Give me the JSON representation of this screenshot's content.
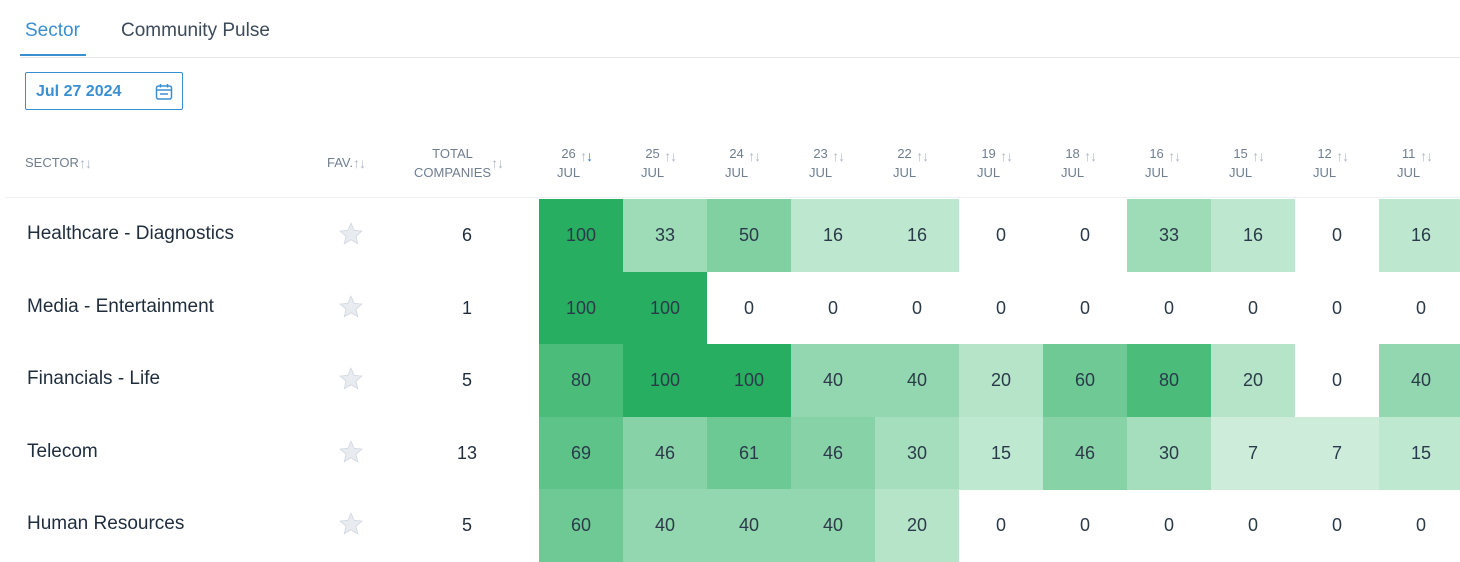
{
  "tabs": [
    {
      "label": "Sector",
      "active": true
    },
    {
      "label": "Community Pulse",
      "active": false
    }
  ],
  "date_picker": {
    "value": "Jul 27 2024",
    "icon": "calendar-icon"
  },
  "columns": {
    "sector": "SECTOR",
    "fav": "FAV.",
    "total_line1": "TOTAL",
    "total_line2": "COMPANIES",
    "dates": [
      {
        "day": "26",
        "month": "JUL",
        "sorted": true
      },
      {
        "day": "25",
        "month": "JUL",
        "sorted": false
      },
      {
        "day": "24",
        "month": "JUL",
        "sorted": false
      },
      {
        "day": "23",
        "month": "JUL",
        "sorted": false
      },
      {
        "day": "22",
        "month": "JUL",
        "sorted": false
      },
      {
        "day": "19",
        "month": "JUL",
        "sorted": false
      },
      {
        "day": "18",
        "month": "JUL",
        "sorted": false
      },
      {
        "day": "16",
        "month": "JUL",
        "sorted": false
      },
      {
        "day": "15",
        "month": "JUL",
        "sorted": false
      },
      {
        "day": "12",
        "month": "JUL",
        "sorted": false
      },
      {
        "day": "11",
        "month": "JUL",
        "sorted": false
      }
    ]
  },
  "rows": [
    {
      "sector": "Healthcare - Diagnostics",
      "total": "6",
      "values": [
        100,
        33,
        50,
        16,
        16,
        0,
        0,
        33,
        16,
        0,
        16
      ]
    },
    {
      "sector": "Media - Entertainment",
      "total": "1",
      "values": [
        100,
        100,
        0,
        0,
        0,
        0,
        0,
        0,
        0,
        0,
        0
      ]
    },
    {
      "sector": "Financials - Life",
      "total": "5",
      "values": [
        80,
        100,
        100,
        40,
        40,
        20,
        60,
        80,
        20,
        0,
        40
      ]
    },
    {
      "sector": "Telecom",
      "total": "13",
      "values": [
        69,
        46,
        61,
        46,
        30,
        15,
        46,
        30,
        7,
        7,
        15
      ]
    },
    {
      "sector": "Human Resources",
      "total": "5",
      "values": [
        60,
        40,
        40,
        40,
        20,
        0,
        0,
        0,
        0,
        0,
        0
      ]
    }
  ],
  "colors": {
    "accent": "#3a8fd1",
    "heat_max": "#27ae60",
    "heat_min": "#d9f2e3"
  }
}
